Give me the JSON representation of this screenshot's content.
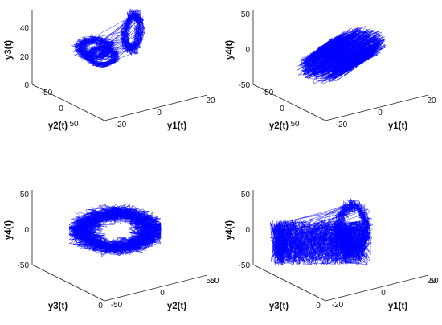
{
  "chart_data": [
    {
      "type": "line",
      "projection": "3d",
      "x": "y1(t)",
      "y": "y2(t)",
      "z": "y3(t)",
      "xlabel": "y1(t)",
      "ylabel": "y2(t)",
      "zlabel": "y3(t)",
      "xlim": [
        -20,
        20
      ],
      "ylim": [
        -50,
        50
      ],
      "zlim": [
        0,
        50
      ],
      "x_ticks": [
        "-20",
        "0",
        "20"
      ],
      "y_ticks": [
        "-50",
        "0",
        "50"
      ],
      "z_ticks": [
        "0",
        "20",
        "40"
      ],
      "series_color": "#0000ff",
      "grid": false
    },
    {
      "type": "line",
      "projection": "3d",
      "x": "y1(t)",
      "y": "y2(t)",
      "z": "y4(t)",
      "xlabel": "y1(t)",
      "ylabel": "y2(t)",
      "zlabel": "y4(t)",
      "xlim": [
        -20,
        20
      ],
      "ylim": [
        -50,
        50
      ],
      "zlim": [
        -50,
        50
      ],
      "x_ticks": [
        "-20",
        "0",
        "20"
      ],
      "y_ticks": [
        "-50",
        "0",
        "50"
      ],
      "z_ticks": [
        "-50",
        "0",
        "50"
      ],
      "series_color": "#0000ff",
      "grid": false
    },
    {
      "type": "line",
      "projection": "3d",
      "x": "y2(t)",
      "y": "y3(t)",
      "z": "y4(t)",
      "xlabel": "y2(t)",
      "ylabel": "y3(t)",
      "zlabel": "y4(t)",
      "xlim": [
        -50,
        50
      ],
      "ylim": [
        0,
        50
      ],
      "zlim": [
        -50,
        50
      ],
      "x_ticks": [
        "-50",
        "0",
        "50"
      ],
      "y_ticks": [
        "0",
        "50"
      ],
      "z_ticks": [
        "-50",
        "0",
        "50"
      ],
      "series_color": "#0000ff",
      "grid": false
    },
    {
      "type": "line",
      "projection": "3d",
      "x": "y1(t)",
      "y": "y3(t)",
      "z": "y4(t)",
      "xlabel": "y1(t)",
      "ylabel": "y3(t)",
      "zlabel": "y4(t)",
      "xlim": [
        -20,
        20
      ],
      "ylim": [
        0,
        50
      ],
      "zlim": [
        -50,
        50
      ],
      "x_ticks": [
        "-20",
        "0",
        "20"
      ],
      "y_ticks": [
        "0",
        "50"
      ],
      "z_ticks": [
        "-50",
        "0",
        "50"
      ],
      "series_color": "#0000ff",
      "grid": false
    }
  ]
}
